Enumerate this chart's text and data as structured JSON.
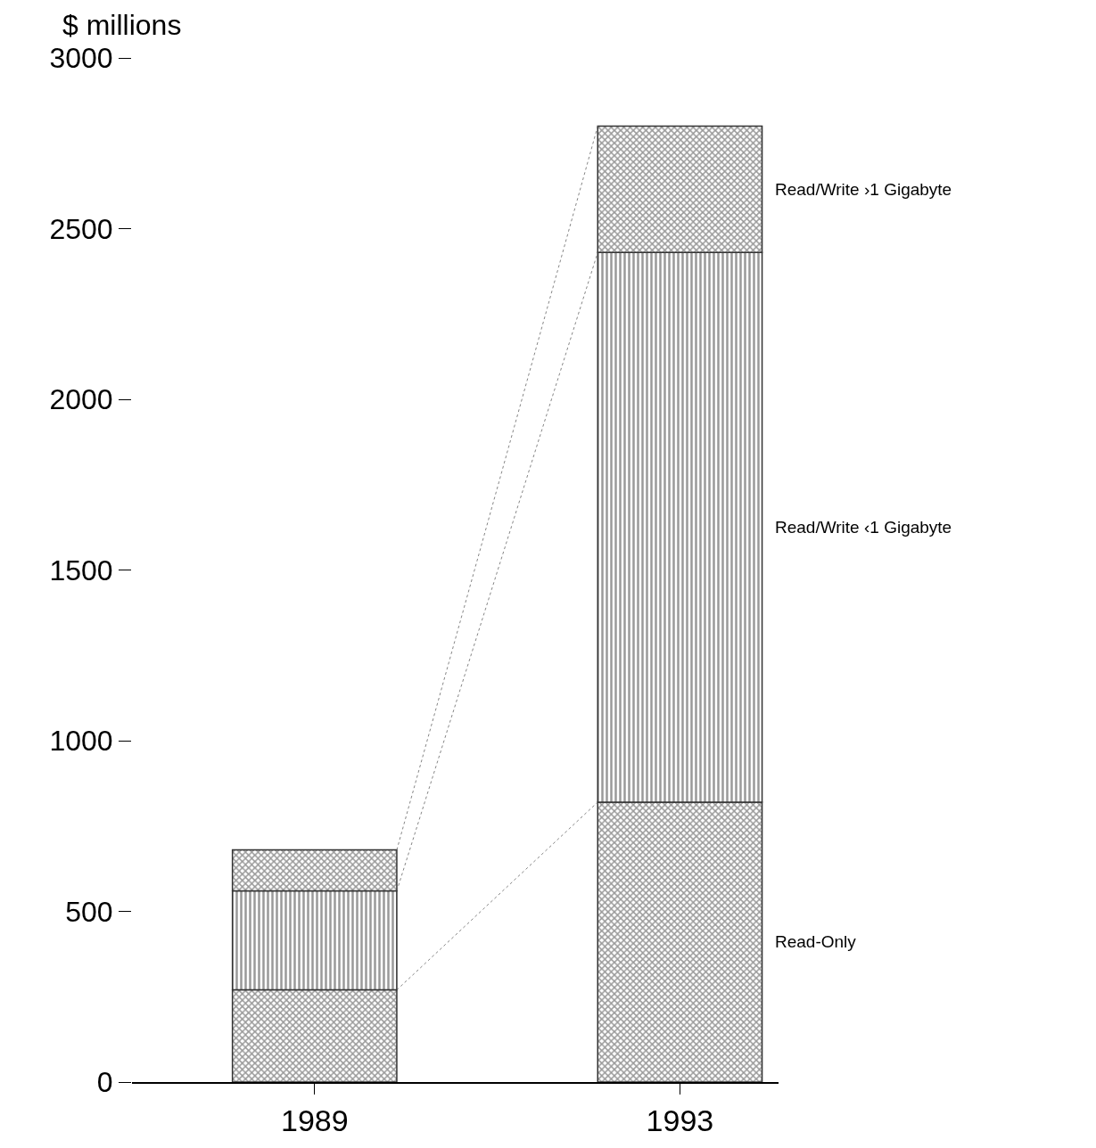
{
  "chart_data": {
    "type": "bar",
    "stacked": true,
    "ylabel": "$ millions",
    "categories": [
      "1989",
      "1993"
    ],
    "series": [
      {
        "name": "Read-Only",
        "color": "#333333",
        "values": [
          270,
          820
        ]
      },
      {
        "name": "Read/Write ‹1 Gigabyte",
        "color": "#333333",
        "values": [
          290,
          1610
        ]
      },
      {
        "name": "Read/Write ›1 Gigabyte",
        "color": "#333333",
        "values": [
          120,
          370
        ]
      }
    ],
    "ylim": [
      0,
      3000
    ],
    "yticks": [
      0,
      500,
      1000,
      1500,
      2000,
      2500,
      3000
    ],
    "legend": false
  }
}
